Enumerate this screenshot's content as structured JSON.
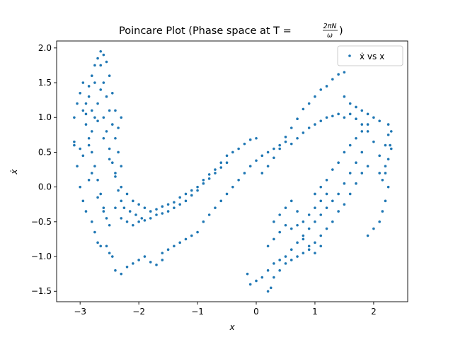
{
  "chart_data": {
    "type": "scatter",
    "title": "Poincare Plot (Phase space at T = 2πN/ω)",
    "title_parts": {
      "prefix": "Poincare Plot (Phase space at T = ",
      "frac_num": "2πN",
      "frac_den": "ω",
      "suffix": ")"
    },
    "xlabel": "x",
    "ylabel": "ẋ",
    "xlim": [
      -3.4,
      2.58
    ],
    "ylim": [
      -1.65,
      2.1
    ],
    "xticks": [
      -3,
      -2,
      -1,
      0,
      1,
      2
    ],
    "xtick_labels": [
      "−3",
      "−2",
      "−1",
      "0",
      "1",
      "2"
    ],
    "yticks": [
      -1.5,
      -1.0,
      -0.5,
      0.0,
      0.5,
      1.0,
      1.5,
      2.0
    ],
    "ytick_labels": [
      "−1.5",
      "−1.0",
      "−0.5",
      "0.0",
      "0.5",
      "1.0",
      "1.5",
      "2.0"
    ],
    "grid": false,
    "legend": {
      "placement": "top-right",
      "label": "ẋ vs x"
    },
    "series": [
      {
        "name": "ẋ vs x",
        "color": "#1f77b4",
        "marker": "circle",
        "points": [
          [
            -3.1,
            0.6
          ],
          [
            -3.05,
            0.3
          ],
          [
            -3.0,
            0.0
          ],
          [
            -2.95,
            -0.2
          ],
          [
            -2.9,
            -0.35
          ],
          [
            -2.85,
            0.1
          ],
          [
            -2.8,
            -0.5
          ],
          [
            -2.75,
            -0.65
          ],
          [
            -2.7,
            -0.8
          ],
          [
            -2.65,
            -0.85
          ],
          [
            -2.55,
            -0.85
          ],
          [
            -2.5,
            -0.95
          ],
          [
            -2.45,
            -1.0
          ],
          [
            -3.1,
            1.0
          ],
          [
            -3.05,
            1.2
          ],
          [
            -3.0,
            1.35
          ],
          [
            -2.95,
            1.1
          ],
          [
            -2.9,
            0.9
          ],
          [
            -2.85,
            0.7
          ],
          [
            -2.8,
            0.5
          ],
          [
            -2.75,
            0.3
          ],
          [
            -2.7,
            0.1
          ],
          [
            -2.65,
            -0.1
          ],
          [
            -2.6,
            -0.3
          ],
          [
            -2.55,
            -0.45
          ],
          [
            -2.5,
            -0.55
          ],
          [
            -2.9,
            1.2
          ],
          [
            -2.85,
            1.45
          ],
          [
            -2.8,
            1.6
          ],
          [
            -2.75,
            1.75
          ],
          [
            -2.7,
            1.85
          ],
          [
            -2.65,
            1.95
          ],
          [
            -2.6,
            1.9
          ],
          [
            -2.55,
            1.8
          ],
          [
            -2.5,
            1.6
          ],
          [
            -2.45,
            1.35
          ],
          [
            -2.4,
            1.1
          ],
          [
            -2.35,
            0.85
          ],
          [
            -2.3,
            1.0
          ],
          [
            -2.85,
            0.6
          ],
          [
            -2.8,
            0.8
          ],
          [
            -2.75,
            1.0
          ],
          [
            -2.7,
            1.2
          ],
          [
            -2.65,
            1.4
          ],
          [
            -2.6,
            1.5
          ],
          [
            -2.55,
            1.3
          ],
          [
            -2.5,
            1.1
          ],
          [
            -2.45,
            0.9
          ],
          [
            -2.4,
            0.7
          ],
          [
            -2.35,
            0.5
          ],
          [
            -2.3,
            0.3
          ],
          [
            -2.9,
            1.05
          ],
          [
            -2.8,
            1.1
          ],
          [
            -2.7,
            0.95
          ],
          [
            -2.6,
            0.7
          ],
          [
            -2.5,
            0.4
          ],
          [
            -2.4,
            0.2
          ],
          [
            -2.3,
            0.0
          ],
          [
            -2.2,
            -0.1
          ],
          [
            -2.1,
            -0.2
          ],
          [
            -2.6,
            1.0
          ],
          [
            -2.55,
            0.8
          ],
          [
            -2.5,
            0.55
          ],
          [
            -2.45,
            0.35
          ],
          [
            -2.4,
            0.15
          ],
          [
            -2.35,
            -0.05
          ],
          [
            -2.3,
            -0.2
          ],
          [
            -2.25,
            -0.3
          ],
          [
            -2.15,
            -0.35
          ],
          [
            -2.05,
            -0.4
          ],
          [
            -1.95,
            -0.45
          ],
          [
            -2.4,
            -0.3
          ],
          [
            -2.3,
            -0.45
          ],
          [
            -2.2,
            -0.5
          ],
          [
            -2.1,
            -0.55
          ],
          [
            -2.0,
            -0.5
          ],
          [
            -1.9,
            -0.48
          ],
          [
            -1.8,
            -0.45
          ],
          [
            -1.7,
            -0.4
          ],
          [
            -1.6,
            -0.38
          ],
          [
            -1.5,
            -0.35
          ],
          [
            -2.0,
            -0.25
          ],
          [
            -1.9,
            -0.3
          ],
          [
            -1.8,
            -0.35
          ],
          [
            -1.7,
            -0.32
          ],
          [
            -1.6,
            -0.28
          ],
          [
            -1.5,
            -0.25
          ],
          [
            -1.4,
            -0.22
          ],
          [
            -1.3,
            -0.15
          ],
          [
            -1.2,
            -0.1
          ],
          [
            -1.1,
            -0.05
          ],
          [
            -1.4,
            -0.3
          ],
          [
            -1.3,
            -0.25
          ],
          [
            -1.2,
            -0.2
          ],
          [
            -1.1,
            -0.12
          ],
          [
            -1.0,
            -0.05
          ],
          [
            -0.9,
            0.05
          ],
          [
            -0.8,
            0.12
          ],
          [
            -0.7,
            0.2
          ],
          [
            -0.6,
            0.28
          ],
          [
            -0.5,
            0.35
          ],
          [
            -1.0,
            0.0
          ],
          [
            -0.9,
            0.1
          ],
          [
            -0.8,
            0.18
          ],
          [
            -0.7,
            0.25
          ],
          [
            -0.6,
            0.35
          ],
          [
            -0.5,
            0.45
          ],
          [
            -0.4,
            0.5
          ],
          [
            -0.3,
            0.55
          ],
          [
            -0.2,
            0.62
          ],
          [
            -0.1,
            0.68
          ],
          [
            0.0,
            0.7
          ],
          [
            -2.4,
            -1.2
          ],
          [
            -2.3,
            -1.25
          ],
          [
            -2.2,
            -1.15
          ],
          [
            -2.1,
            -1.1
          ],
          [
            -2.0,
            -1.05
          ],
          [
            -1.9,
            -1.0
          ],
          [
            -1.8,
            -1.08
          ],
          [
            -1.7,
            -1.12
          ],
          [
            -1.6,
            -0.95
          ],
          [
            -1.5,
            -0.9
          ],
          [
            -1.6,
            -1.05
          ],
          [
            -1.4,
            -0.85
          ],
          [
            -1.3,
            -0.8
          ],
          [
            -1.2,
            -0.75
          ],
          [
            -1.1,
            -0.7
          ],
          [
            -1.0,
            -0.65
          ],
          [
            -0.9,
            -0.5
          ],
          [
            -0.8,
            -0.4
          ],
          [
            -0.7,
            -0.3
          ],
          [
            -0.6,
            -0.2
          ],
          [
            -0.5,
            -0.1
          ],
          [
            -0.4,
            0.0
          ],
          [
            -0.3,
            0.1
          ],
          [
            -0.2,
            0.2
          ],
          [
            -0.1,
            0.3
          ],
          [
            0.0,
            0.38
          ],
          [
            0.1,
            0.45
          ],
          [
            0.2,
            0.5
          ],
          [
            0.3,
            0.55
          ],
          [
            0.4,
            0.6
          ],
          [
            0.5,
            0.65
          ],
          [
            0.6,
            0.62
          ],
          [
            0.7,
            0.7
          ],
          [
            0.8,
            0.78
          ],
          [
            0.9,
            0.85
          ],
          [
            1.0,
            0.9
          ],
          [
            1.1,
            0.95
          ],
          [
            1.2,
            1.0
          ],
          [
            1.3,
            1.02
          ],
          [
            1.4,
            1.05
          ],
          [
            1.5,
            1.0
          ],
          [
            0.1,
            0.2
          ],
          [
            0.2,
            0.3
          ],
          [
            0.3,
            0.42
          ],
          [
            0.4,
            0.55
          ],
          [
            0.5,
            0.72
          ],
          [
            0.6,
            0.85
          ],
          [
            0.7,
            0.98
          ],
          [
            0.8,
            1.12
          ],
          [
            0.9,
            1.2
          ],
          [
            1.0,
            1.3
          ],
          [
            1.1,
            1.4
          ],
          [
            1.2,
            1.45
          ],
          [
            1.3,
            1.55
          ],
          [
            1.4,
            1.62
          ],
          [
            1.5,
            1.65
          ],
          [
            1.5,
            1.3
          ],
          [
            1.6,
            1.2
          ],
          [
            1.7,
            1.15
          ],
          [
            1.8,
            1.1
          ],
          [
            1.9,
            1.05
          ],
          [
            2.0,
            1.0
          ],
          [
            2.1,
            0.95
          ],
          [
            1.6,
            1.05
          ],
          [
            1.7,
            0.98
          ],
          [
            1.8,
            0.9
          ],
          [
            1.9,
            0.8
          ],
          [
            2.0,
            0.65
          ],
          [
            2.1,
            0.45
          ],
          [
            2.2,
            0.2
          ],
          [
            2.25,
            0.0
          ],
          [
            2.2,
            -0.2
          ],
          [
            2.15,
            -0.35
          ],
          [
            2.1,
            -0.5
          ],
          [
            2.0,
            -0.6
          ],
          [
            1.9,
            -0.7
          ],
          [
            2.25,
            0.9
          ],
          [
            2.3,
            0.8
          ],
          [
            2.28,
            0.6
          ],
          [
            2.25,
            0.4
          ],
          [
            2.2,
            0.3
          ],
          [
            2.15,
            0.1
          ],
          [
            2.3,
            0.55
          ],
          [
            2.25,
            0.75
          ],
          [
            2.2,
            0.6
          ],
          [
            2.1,
            0.2
          ],
          [
            1.8,
            0.5
          ],
          [
            1.7,
            0.35
          ],
          [
            1.6,
            0.2
          ],
          [
            1.5,
            0.05
          ],
          [
            1.4,
            -0.1
          ],
          [
            1.3,
            -0.2
          ],
          [
            1.2,
            -0.3
          ],
          [
            1.1,
            -0.4
          ],
          [
            1.0,
            -0.5
          ],
          [
            0.9,
            -0.6
          ],
          [
            1.9,
            0.3
          ],
          [
            1.8,
            0.2
          ],
          [
            1.7,
            0.05
          ],
          [
            1.6,
            -0.1
          ],
          [
            1.5,
            -0.25
          ],
          [
            1.4,
            -0.35
          ],
          [
            1.3,
            -0.5
          ],
          [
            1.2,
            -0.6
          ],
          [
            1.1,
            -0.7
          ],
          [
            1.0,
            -0.8
          ],
          [
            0.8,
            -0.7
          ],
          [
            0.7,
            -0.8
          ],
          [
            0.6,
            -0.9
          ],
          [
            0.5,
            -1.0
          ],
          [
            0.4,
            -1.05
          ],
          [
            0.3,
            -1.1
          ],
          [
            0.2,
            -1.2
          ],
          [
            0.1,
            -1.3
          ],
          [
            0.0,
            -1.35
          ],
          [
            -0.1,
            -1.4
          ],
          [
            0.9,
            -0.9
          ],
          [
            0.8,
            -0.95
          ],
          [
            0.7,
            -1.0
          ],
          [
            0.6,
            -1.05
          ],
          [
            0.5,
            -1.1
          ],
          [
            0.4,
            -1.2
          ],
          [
            0.3,
            -1.3
          ],
          [
            0.25,
            -1.45
          ],
          [
            0.2,
            -1.5
          ],
          [
            -0.15,
            -1.25
          ],
          [
            0.3,
            -0.5
          ],
          [
            0.4,
            -0.4
          ],
          [
            0.5,
            -0.3
          ],
          [
            0.6,
            -0.2
          ],
          [
            0.7,
            -0.35
          ],
          [
            0.8,
            -0.5
          ],
          [
            0.9,
            -0.4
          ],
          [
            1.0,
            -0.3
          ],
          [
            1.1,
            -0.2
          ],
          [
            1.2,
            -0.1
          ],
          [
            0.2,
            -0.85
          ],
          [
            0.3,
            -0.75
          ],
          [
            0.4,
            -0.65
          ],
          [
            0.5,
            -0.55
          ],
          [
            0.6,
            -0.6
          ],
          [
            0.7,
            -0.55
          ],
          [
            0.8,
            -0.75
          ],
          [
            0.9,
            -0.85
          ],
          [
            1.0,
            -0.95
          ],
          [
            1.1,
            -0.85
          ],
          [
            1.5,
            0.5
          ],
          [
            1.6,
            0.6
          ],
          [
            1.7,
            0.7
          ],
          [
            1.8,
            0.8
          ],
          [
            1.9,
            0.9
          ],
          [
            1.4,
            0.35
          ],
          [
            1.3,
            0.25
          ],
          [
            1.2,
            0.1
          ],
          [
            1.1,
            0.0
          ],
          [
            1.0,
            -0.1
          ],
          [
            -3.1,
            0.65
          ],
          [
            -3.0,
            0.55
          ],
          [
            -2.95,
            0.45
          ],
          [
            -2.8,
            0.2
          ],
          [
            -2.7,
            -0.15
          ],
          [
            -2.6,
            -0.35
          ],
          [
            -2.95,
            1.5
          ],
          [
            -2.85,
            1.3
          ],
          [
            -2.75,
            1.5
          ],
          [
            -2.65,
            1.75
          ]
        ]
      }
    ]
  }
}
